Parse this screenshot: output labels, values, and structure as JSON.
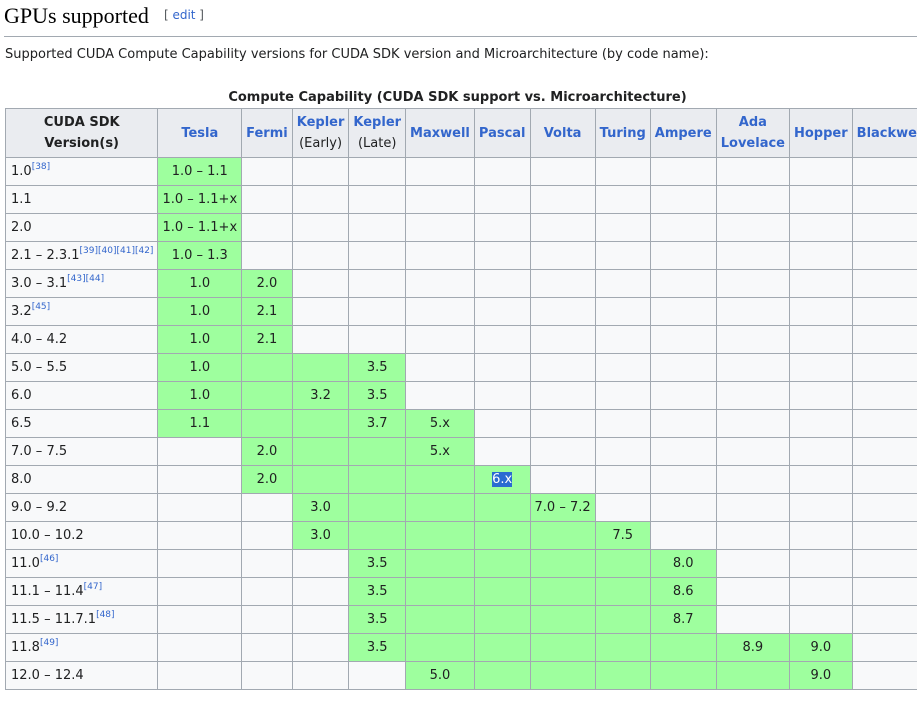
{
  "section": {
    "title": "GPUs supported",
    "edit_open": "[ ",
    "edit_label": "edit",
    "edit_close": " ]"
  },
  "intro": "Supported CUDA Compute Capability versions for CUDA SDK version and Microarchitecture (by code name):",
  "table": {
    "caption": "Compute Capability (CUDA SDK support vs. Microarchitecture)",
    "corner_line1": "CUDA SDK",
    "corner_line2": "Version(s)",
    "columns": [
      {
        "line1": "Tesla",
        "line2": ""
      },
      {
        "line1": "Fermi",
        "line2": ""
      },
      {
        "line1": "Kepler",
        "line2": "(Early)"
      },
      {
        "line1": "Kepler",
        "line2": "(Late)"
      },
      {
        "line1": "Maxwell",
        "line2": ""
      },
      {
        "line1": "Pascal",
        "line2": ""
      },
      {
        "line1": "Volta",
        "line2": ""
      },
      {
        "line1": "Turing",
        "line2": ""
      },
      {
        "line1": "Ampere",
        "line2": ""
      },
      {
        "line1": "Ada",
        "line2": "Lovelace"
      },
      {
        "line1": "Hopper",
        "line2": ""
      },
      {
        "line1": "Blackwell",
        "line2": ""
      }
    ],
    "rows": [
      {
        "version": "1.0",
        "refs": "[38]",
        "cells": [
          {
            "t": "1.0 – 1.1",
            "g": true
          },
          {
            "t": "",
            "g": false
          },
          {
            "t": "",
            "g": false
          },
          {
            "t": "",
            "g": false
          },
          {
            "t": "",
            "g": false
          },
          {
            "t": "",
            "g": false
          },
          {
            "t": "",
            "g": false
          },
          {
            "t": "",
            "g": false
          },
          {
            "t": "",
            "g": false
          },
          {
            "t": "",
            "g": false
          },
          {
            "t": "",
            "g": false
          },
          {
            "t": "",
            "g": false
          }
        ]
      },
      {
        "version": "1.1",
        "refs": "",
        "cells": [
          {
            "t": "1.0 – 1.1+x",
            "g": true
          },
          {
            "t": "",
            "g": false
          },
          {
            "t": "",
            "g": false
          },
          {
            "t": "",
            "g": false
          },
          {
            "t": "",
            "g": false
          },
          {
            "t": "",
            "g": false
          },
          {
            "t": "",
            "g": false
          },
          {
            "t": "",
            "g": false
          },
          {
            "t": "",
            "g": false
          },
          {
            "t": "",
            "g": false
          },
          {
            "t": "",
            "g": false
          },
          {
            "t": "",
            "g": false
          }
        ]
      },
      {
        "version": "2.0",
        "refs": "",
        "cells": [
          {
            "t": "1.0 – 1.1+x",
            "g": true
          },
          {
            "t": "",
            "g": false
          },
          {
            "t": "",
            "g": false
          },
          {
            "t": "",
            "g": false
          },
          {
            "t": "",
            "g": false
          },
          {
            "t": "",
            "g": false
          },
          {
            "t": "",
            "g": false
          },
          {
            "t": "",
            "g": false
          },
          {
            "t": "",
            "g": false
          },
          {
            "t": "",
            "g": false
          },
          {
            "t": "",
            "g": false
          },
          {
            "t": "",
            "g": false
          }
        ]
      },
      {
        "version": "2.1 – 2.3.1",
        "refs": "[39][40][41][42]",
        "cells": [
          {
            "t": "1.0 – 1.3",
            "g": true
          },
          {
            "t": "",
            "g": false
          },
          {
            "t": "",
            "g": false
          },
          {
            "t": "",
            "g": false
          },
          {
            "t": "",
            "g": false
          },
          {
            "t": "",
            "g": false
          },
          {
            "t": "",
            "g": false
          },
          {
            "t": "",
            "g": false
          },
          {
            "t": "",
            "g": false
          },
          {
            "t": "",
            "g": false
          },
          {
            "t": "",
            "g": false
          },
          {
            "t": "",
            "g": false
          }
        ]
      },
      {
        "version": "3.0 – 3.1",
        "refs": "[43][44]",
        "cells": [
          {
            "t": "1.0",
            "g": true
          },
          {
            "t": "2.0",
            "g": true
          },
          {
            "t": "",
            "g": false
          },
          {
            "t": "",
            "g": false
          },
          {
            "t": "",
            "g": false
          },
          {
            "t": "",
            "g": false
          },
          {
            "t": "",
            "g": false
          },
          {
            "t": "",
            "g": false
          },
          {
            "t": "",
            "g": false
          },
          {
            "t": "",
            "g": false
          },
          {
            "t": "",
            "g": false
          },
          {
            "t": "",
            "g": false
          }
        ]
      },
      {
        "version": "3.2",
        "refs": "[45]",
        "cells": [
          {
            "t": "1.0",
            "g": true
          },
          {
            "t": "2.1",
            "g": true
          },
          {
            "t": "",
            "g": false
          },
          {
            "t": "",
            "g": false
          },
          {
            "t": "",
            "g": false
          },
          {
            "t": "",
            "g": false
          },
          {
            "t": "",
            "g": false
          },
          {
            "t": "",
            "g": false
          },
          {
            "t": "",
            "g": false
          },
          {
            "t": "",
            "g": false
          },
          {
            "t": "",
            "g": false
          },
          {
            "t": "",
            "g": false
          }
        ]
      },
      {
        "version": "4.0 – 4.2",
        "refs": "",
        "cells": [
          {
            "t": "1.0",
            "g": true
          },
          {
            "t": "2.1",
            "g": true
          },
          {
            "t": "",
            "g": false
          },
          {
            "t": "",
            "g": false
          },
          {
            "t": "",
            "g": false
          },
          {
            "t": "",
            "g": false
          },
          {
            "t": "",
            "g": false
          },
          {
            "t": "",
            "g": false
          },
          {
            "t": "",
            "g": false
          },
          {
            "t": "",
            "g": false
          },
          {
            "t": "",
            "g": false
          },
          {
            "t": "",
            "g": false
          }
        ]
      },
      {
        "version": "5.0 – 5.5",
        "refs": "",
        "cells": [
          {
            "t": "1.0",
            "g": true
          },
          {
            "t": "",
            "g": true
          },
          {
            "t": "",
            "g": true
          },
          {
            "t": "3.5",
            "g": true
          },
          {
            "t": "",
            "g": false
          },
          {
            "t": "",
            "g": false
          },
          {
            "t": "",
            "g": false
          },
          {
            "t": "",
            "g": false
          },
          {
            "t": "",
            "g": false
          },
          {
            "t": "",
            "g": false
          },
          {
            "t": "",
            "g": false
          },
          {
            "t": "",
            "g": false
          }
        ]
      },
      {
        "version": "6.0",
        "refs": "",
        "cells": [
          {
            "t": "1.0",
            "g": true
          },
          {
            "t": "",
            "g": true
          },
          {
            "t": "3.2",
            "g": true
          },
          {
            "t": "3.5",
            "g": true
          },
          {
            "t": "",
            "g": false
          },
          {
            "t": "",
            "g": false
          },
          {
            "t": "",
            "g": false
          },
          {
            "t": "",
            "g": false
          },
          {
            "t": "",
            "g": false
          },
          {
            "t": "",
            "g": false
          },
          {
            "t": "",
            "g": false
          },
          {
            "t": "",
            "g": false
          }
        ]
      },
      {
        "version": "6.5",
        "refs": "",
        "cells": [
          {
            "t": "1.1",
            "g": true
          },
          {
            "t": "",
            "g": true
          },
          {
            "t": "",
            "g": true
          },
          {
            "t": "3.7",
            "g": true
          },
          {
            "t": "5.x",
            "g": true
          },
          {
            "t": "",
            "g": false
          },
          {
            "t": "",
            "g": false
          },
          {
            "t": "",
            "g": false
          },
          {
            "t": "",
            "g": false
          },
          {
            "t": "",
            "g": false
          },
          {
            "t": "",
            "g": false
          },
          {
            "t": "",
            "g": false
          }
        ]
      },
      {
        "version": "7.0 – 7.5",
        "refs": "",
        "cells": [
          {
            "t": "",
            "g": false
          },
          {
            "t": "2.0",
            "g": true
          },
          {
            "t": "",
            "g": true
          },
          {
            "t": "",
            "g": true
          },
          {
            "t": "5.x",
            "g": true
          },
          {
            "t": "",
            "g": false
          },
          {
            "t": "",
            "g": false
          },
          {
            "t": "",
            "g": false
          },
          {
            "t": "",
            "g": false
          },
          {
            "t": "",
            "g": false
          },
          {
            "t": "",
            "g": false
          },
          {
            "t": "",
            "g": false
          }
        ]
      },
      {
        "version": "8.0",
        "refs": "",
        "cells": [
          {
            "t": "",
            "g": false
          },
          {
            "t": "2.0",
            "g": true
          },
          {
            "t": "",
            "g": true
          },
          {
            "t": "",
            "g": true
          },
          {
            "t": "",
            "g": true
          },
          {
            "t": "6.x",
            "g": true,
            "sel": true
          },
          {
            "t": "",
            "g": false
          },
          {
            "t": "",
            "g": false
          },
          {
            "t": "",
            "g": false
          },
          {
            "t": "",
            "g": false
          },
          {
            "t": "",
            "g": false
          },
          {
            "t": "",
            "g": false
          }
        ]
      },
      {
        "version": "9.0 – 9.2",
        "refs": "",
        "cells": [
          {
            "t": "",
            "g": false
          },
          {
            "t": "",
            "g": false
          },
          {
            "t": "3.0",
            "g": true
          },
          {
            "t": "",
            "g": true
          },
          {
            "t": "",
            "g": true
          },
          {
            "t": "",
            "g": true
          },
          {
            "t": "7.0 – 7.2",
            "g": true
          },
          {
            "t": "",
            "g": false
          },
          {
            "t": "",
            "g": false
          },
          {
            "t": "",
            "g": false
          },
          {
            "t": "",
            "g": false
          },
          {
            "t": "",
            "g": false
          }
        ]
      },
      {
        "version": "10.0 – 10.2",
        "refs": "",
        "cells": [
          {
            "t": "",
            "g": false
          },
          {
            "t": "",
            "g": false
          },
          {
            "t": "3.0",
            "g": true
          },
          {
            "t": "",
            "g": true
          },
          {
            "t": "",
            "g": true
          },
          {
            "t": "",
            "g": true
          },
          {
            "t": "",
            "g": true
          },
          {
            "t": "7.5",
            "g": true
          },
          {
            "t": "",
            "g": false
          },
          {
            "t": "",
            "g": false
          },
          {
            "t": "",
            "g": false
          },
          {
            "t": "",
            "g": false
          }
        ]
      },
      {
        "version": "11.0",
        "refs": "[46]",
        "cells": [
          {
            "t": "",
            "g": false
          },
          {
            "t": "",
            "g": false
          },
          {
            "t": "",
            "g": false
          },
          {
            "t": "3.5",
            "g": true
          },
          {
            "t": "",
            "g": true
          },
          {
            "t": "",
            "g": true
          },
          {
            "t": "",
            "g": true
          },
          {
            "t": "",
            "g": true
          },
          {
            "t": "8.0",
            "g": true
          },
          {
            "t": "",
            "g": false
          },
          {
            "t": "",
            "g": false
          },
          {
            "t": "",
            "g": false
          }
        ]
      },
      {
        "version": "11.1 – 11.4",
        "refs": "[47]",
        "cells": [
          {
            "t": "",
            "g": false
          },
          {
            "t": "",
            "g": false
          },
          {
            "t": "",
            "g": false
          },
          {
            "t": "3.5",
            "g": true
          },
          {
            "t": "",
            "g": true
          },
          {
            "t": "",
            "g": true
          },
          {
            "t": "",
            "g": true
          },
          {
            "t": "",
            "g": true
          },
          {
            "t": "8.6",
            "g": true
          },
          {
            "t": "",
            "g": false
          },
          {
            "t": "",
            "g": false
          },
          {
            "t": "",
            "g": false
          }
        ]
      },
      {
        "version": "11.5 – 11.7.1",
        "refs": "[48]",
        "cells": [
          {
            "t": "",
            "g": false
          },
          {
            "t": "",
            "g": false
          },
          {
            "t": "",
            "g": false
          },
          {
            "t": "3.5",
            "g": true
          },
          {
            "t": "",
            "g": true
          },
          {
            "t": "",
            "g": true
          },
          {
            "t": "",
            "g": true
          },
          {
            "t": "",
            "g": true
          },
          {
            "t": "8.7",
            "g": true
          },
          {
            "t": "",
            "g": false
          },
          {
            "t": "",
            "g": false
          },
          {
            "t": "",
            "g": false
          }
        ]
      },
      {
        "version": "11.8",
        "refs": "[49]",
        "cells": [
          {
            "t": "",
            "g": false
          },
          {
            "t": "",
            "g": false
          },
          {
            "t": "",
            "g": false
          },
          {
            "t": "3.5",
            "g": true
          },
          {
            "t": "",
            "g": true
          },
          {
            "t": "",
            "g": true
          },
          {
            "t": "",
            "g": true
          },
          {
            "t": "",
            "g": true
          },
          {
            "t": "",
            "g": true
          },
          {
            "t": "8.9",
            "g": true
          },
          {
            "t": "9.0",
            "g": true
          },
          {
            "t": "",
            "g": false
          }
        ]
      },
      {
        "version": "12.0 – 12.4",
        "refs": "",
        "cells": [
          {
            "t": "",
            "g": false
          },
          {
            "t": "",
            "g": false
          },
          {
            "t": "",
            "g": false
          },
          {
            "t": "",
            "g": false
          },
          {
            "t": "5.0",
            "g": true
          },
          {
            "t": "",
            "g": true
          },
          {
            "t": "",
            "g": true
          },
          {
            "t": "",
            "g": true
          },
          {
            "t": "",
            "g": true
          },
          {
            "t": "",
            "g": true
          },
          {
            "t": "9.0",
            "g": true
          },
          {
            "t": "",
            "g": false
          }
        ]
      }
    ]
  }
}
